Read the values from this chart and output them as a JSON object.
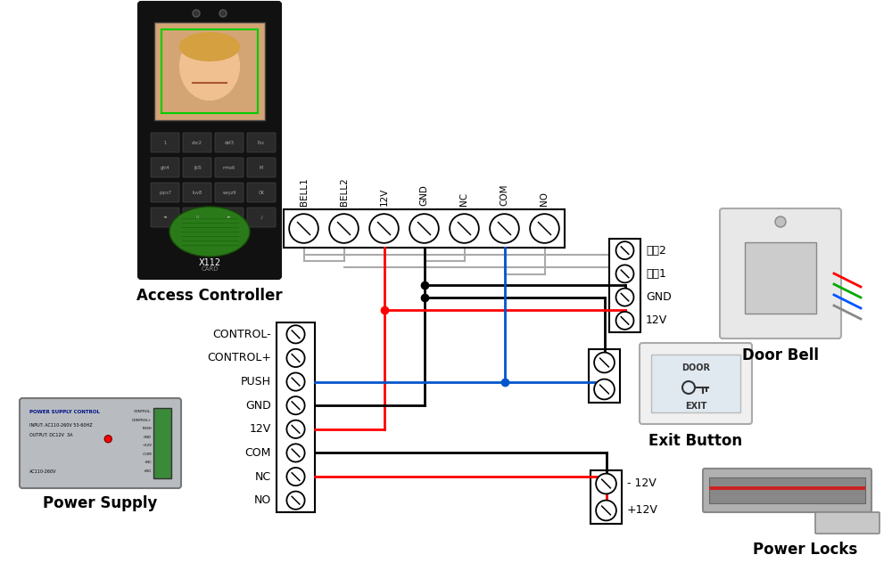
{
  "bg_color": "#ffffff",
  "top_terminal_labels": [
    "BELL1",
    "BELL2",
    "12V",
    "GND",
    "NC",
    "COM",
    "NO"
  ],
  "ps_terminal_labels": [
    "CONTROL-",
    "CONTROL+",
    "PUSH",
    "GND",
    "12V",
    "COM",
    "NC",
    "NO"
  ],
  "doorbell_labels": [
    "信号2",
    "信号1",
    "GND",
    "12V"
  ],
  "power_lock_labels": [
    "- 12V",
    "+12V"
  ],
  "component_labels": {
    "access_controller": "Access Controller",
    "power_supply": "Power Supply",
    "door_bell": "Door Bell",
    "exit_button": "Exit Button",
    "power_locks": "Power Locks"
  },
  "colors": {
    "black": "#000000",
    "red": "#ff0000",
    "blue": "#0055cc",
    "gray": "#aaaaaa",
    "dark_gray": "#888888",
    "white": "#ffffff",
    "device_dark": "#1a1a1a",
    "device_gray": "#c8c8d0",
    "device_light": "#e8e8e8",
    "green_fp": "#2a7a1a",
    "bg": "#ffffff"
  },
  "font_sizes": {
    "label_small": 7.5,
    "label_medium": 9,
    "component_bold": 12,
    "tiny": 5
  }
}
